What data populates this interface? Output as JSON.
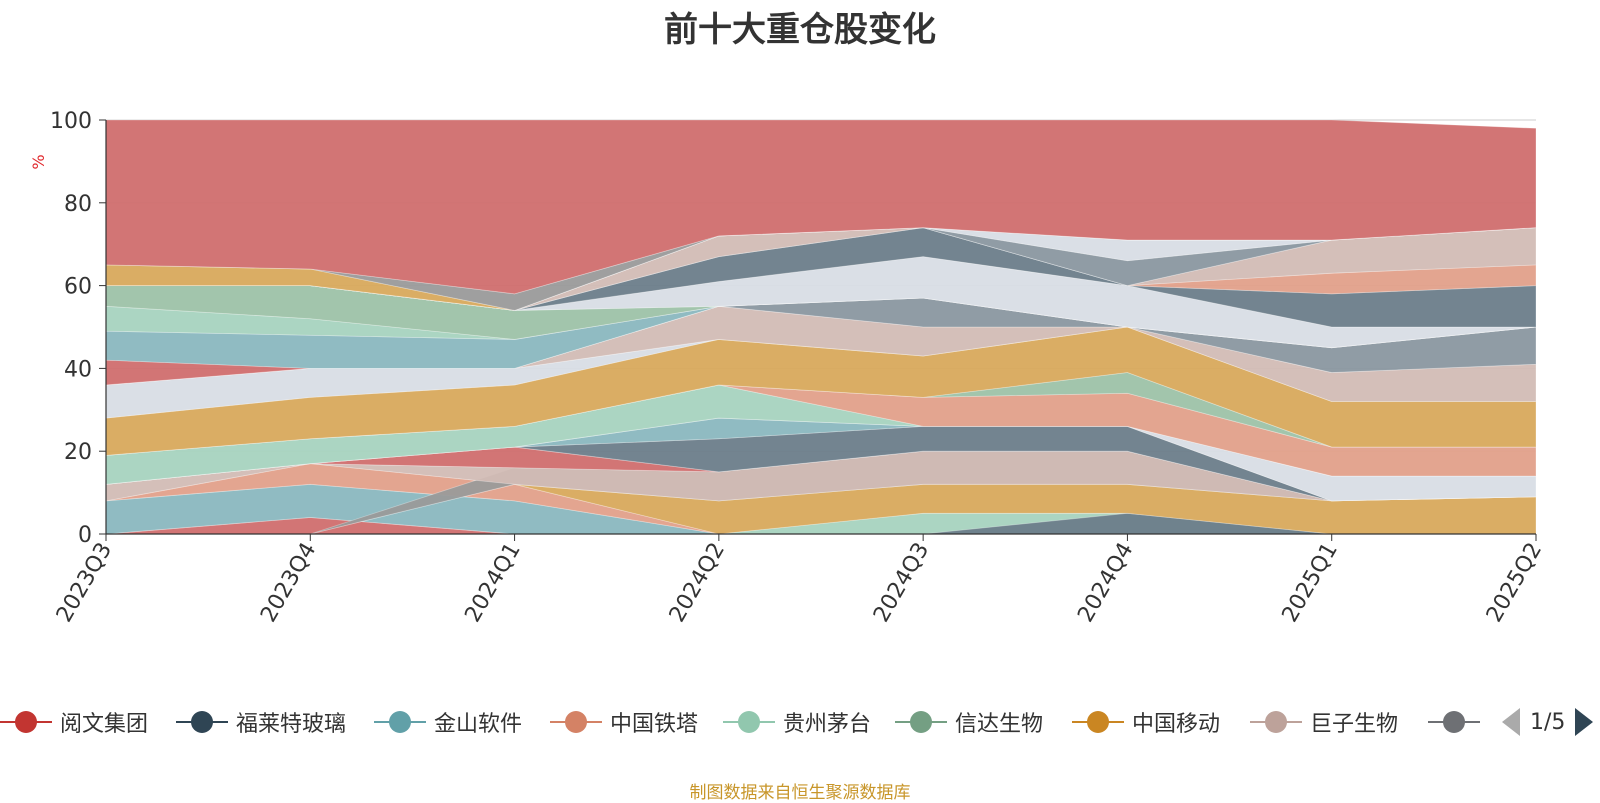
{
  "title": "前十大重仓股变化",
  "source_note": "制图数据来自恒生聚源数据库",
  "legend_page": "1/5",
  "chart_data": {
    "type": "area",
    "title": "前十大重仓股变化",
    "ylabel": "%",
    "ylim": [
      0,
      100
    ],
    "yticks": [
      0,
      20,
      40,
      60,
      80,
      100
    ],
    "categories": [
      "2023Q3",
      "2023Q4",
      "2024Q1",
      "2024Q2",
      "2024Q3",
      "2024Q4",
      "2025Q1",
      "2025Q2"
    ],
    "grid": true,
    "legend_position": "bottom",
    "layers": [
      {
        "color": "#d06e6e",
        "lower": [
          0,
          0,
          0,
          0,
          0,
          0,
          0,
          0
        ],
        "upper": [
          0,
          4,
          0,
          0,
          0,
          0,
          0,
          0
        ]
      },
      {
        "color": "#8ab7bf",
        "lower": [
          0,
          4,
          0,
          0,
          0,
          0,
          0,
          0
        ],
        "upper": [
          8,
          12,
          8,
          0,
          0,
          0,
          0,
          0
        ]
      },
      {
        "color": "#e2a08a",
        "lower": [
          8,
          12,
          8,
          0,
          0,
          0,
          0,
          0
        ],
        "upper": [
          8,
          17,
          12,
          0,
          0,
          0,
          0,
          0
        ]
      },
      {
        "color": "#a7d3bf",
        "lower": [
          0,
          0,
          0,
          0,
          0,
          0,
          0,
          0
        ],
        "upper": [
          0,
          0,
          0,
          0,
          5,
          5,
          0,
          0
        ]
      },
      {
        "color": "#6b7d8a",
        "lower": [
          0,
          0,
          0,
          0,
          0,
          0,
          0,
          0
        ],
        "upper": [
          0,
          0,
          0,
          0,
          0,
          5,
          0,
          0
        ]
      },
      {
        "color": "#d8a95c",
        "lower": [
          0,
          0,
          12,
          0,
          5,
          5,
          0,
          0
        ],
        "upper": [
          0,
          0,
          12,
          8,
          12,
          12,
          8,
          9
        ]
      },
      {
        "color": "#9a9a9a",
        "lower": [
          0,
          0,
          12,
          8,
          12,
          12,
          8,
          9
        ],
        "upper": [
          0,
          0,
          16,
          15,
          20,
          20,
          8,
          9
        ]
      },
      {
        "color": "#d2bcb5",
        "lower": [
          8,
          17,
          12,
          8,
          12,
          12,
          8,
          9
        ],
        "upper": [
          12,
          17,
          16,
          15,
          20,
          20,
          8,
          9
        ]
      },
      {
        "color": "#d06e6e",
        "lower": [
          12,
          17,
          16,
          15,
          20,
          20,
          8,
          9
        ],
        "upper": [
          12,
          17,
          21,
          15,
          20,
          20,
          8,
          9
        ]
      },
      {
        "color": "#6b7d8a",
        "lower": [
          12,
          17,
          21,
          15,
          20,
          20,
          8,
          9
        ],
        "upper": [
          12,
          17,
          21,
          23,
          26,
          26,
          8,
          9
        ]
      },
      {
        "color": "#8ab7bf",
        "lower": [
          12,
          17,
          21,
          23,
          26,
          26,
          8,
          9
        ],
        "upper": [
          12,
          17,
          21,
          28,
          26,
          26,
          8,
          9
        ]
      },
      {
        "color": "#d8dde5",
        "lower": [
          12,
          17,
          21,
          28,
          26,
          26,
          8,
          9
        ],
        "upper": [
          12,
          17,
          21,
          28,
          26,
          26,
          14,
          14
        ]
      },
      {
        "color": "#a7d3bf",
        "lower": [
          12,
          17,
          21,
          28,
          26,
          26,
          14,
          14
        ],
        "upper": [
          19,
          23,
          26,
          36,
          26,
          26,
          14,
          14
        ]
      },
      {
        "color": "#e2a08a",
        "lower": [
          19,
          23,
          26,
          36,
          26,
          26,
          14,
          14
        ],
        "upper": [
          19,
          23,
          26,
          36,
          33,
          34,
          21,
          21
        ]
      },
      {
        "color": "#9dc2a8",
        "lower": [
          19,
          23,
          26,
          36,
          33,
          34,
          21,
          21
        ],
        "upper": [
          19,
          23,
          26,
          36,
          33,
          39,
          21,
          21
        ]
      },
      {
        "color": "#d8a95c",
        "lower": [
          19,
          23,
          26,
          36,
          33,
          39,
          21,
          21
        ],
        "upper": [
          28,
          33,
          36,
          47,
          43,
          50,
          32,
          32
        ]
      },
      {
        "color": "#d8dde5",
        "lower": [
          28,
          33,
          36,
          47,
          43,
          50,
          32,
          32
        ],
        "upper": [
          36,
          40,
          40,
          47,
          43,
          50,
          32,
          32
        ]
      },
      {
        "color": "#d2bcb5",
        "lower": [
          36,
          40,
          40,
          47,
          43,
          50,
          32,
          32
        ],
        "upper": [
          36,
          40,
          40,
          55,
          50,
          50,
          39,
          41
        ]
      },
      {
        "color": "#8a97a0",
        "lower": [
          36,
          40,
          40,
          55,
          50,
          50,
          39,
          41
        ],
        "upper": [
          36,
          40,
          40,
          55,
          57,
          50,
          45,
          50
        ]
      },
      {
        "color": "#d06e6e",
        "lower": [
          36,
          40,
          40,
          55,
          57,
          50,
          45,
          50
        ],
        "upper": [
          42,
          40,
          40,
          55,
          57,
          50,
          45,
          50
        ]
      },
      {
        "color": "#8ab7bf",
        "lower": [
          42,
          40,
          40,
          55,
          57,
          50,
          45,
          50
        ],
        "upper": [
          49,
          48,
          47,
          55,
          57,
          50,
          45,
          50
        ]
      },
      {
        "color": "#a7d3bf",
        "lower": [
          49,
          48,
          47,
          55,
          57,
          50,
          45,
          50
        ],
        "upper": [
          55,
          52,
          47,
          55,
          57,
          50,
          45,
          50
        ]
      },
      {
        "color": "#9dc2a8",
        "lower": [
          55,
          52,
          47,
          55,
          57,
          50,
          45,
          50
        ],
        "upper": [
          60,
          60,
          54,
          55,
          57,
          50,
          45,
          50
        ]
      },
      {
        "color": "#d8dde5",
        "lower": [
          60,
          60,
          54,
          55,
          57,
          50,
          45,
          50
        ],
        "upper": [
          60,
          60,
          54,
          61,
          67,
          60,
          50,
          50
        ]
      },
      {
        "color": "#6b7d8a",
        "lower": [
          60,
          60,
          54,
          61,
          67,
          60,
          50,
          50
        ],
        "upper": [
          60,
          60,
          54,
          67,
          74,
          60,
          58,
          60
        ]
      },
      {
        "color": "#e2a08a",
        "lower": [
          60,
          60,
          54,
          67,
          74,
          60,
          58,
          60
        ],
        "upper": [
          60,
          60,
          54,
          67,
          74,
          60,
          63,
          65
        ]
      },
      {
        "color": "#d2bcb5",
        "lower": [
          60,
          60,
          54,
          67,
          74,
          60,
          63,
          65
        ],
        "upper": [
          60,
          60,
          54,
          72,
          74,
          60,
          71,
          74
        ]
      },
      {
        "color": "#8a97a0",
        "lower": [
          60,
          60,
          54,
          72,
          74,
          60,
          71,
          74
        ],
        "upper": [
          60,
          60,
          54,
          72,
          74,
          66,
          71,
          74
        ]
      },
      {
        "color": "#d8dde5",
        "lower": [
          60,
          60,
          54,
          72,
          74,
          66,
          71,
          74
        ],
        "upper": [
          60,
          60,
          54,
          72,
          74,
          71,
          71,
          74
        ]
      },
      {
        "color": "#d8a95c",
        "lower": [
          60,
          60,
          54,
          72,
          74,
          71,
          71,
          74
        ],
        "upper": [
          65,
          64,
          54,
          72,
          74,
          71,
          71,
          74
        ]
      },
      {
        "color": "#9a9a9a",
        "lower": [
          65,
          64,
          54,
          72,
          74,
          71,
          71,
          74
        ],
        "upper": [
          65,
          64,
          58,
          72,
          74,
          71,
          71,
          74
        ]
      },
      {
        "color": "#d06e6e",
        "lower": [
          65,
          64,
          58,
          72,
          74,
          71,
          71,
          74
        ],
        "upper": [
          100,
          100,
          100,
          100,
          100,
          100,
          100,
          98
        ]
      }
    ],
    "legend": [
      {
        "name": "阅文集团",
        "color": "#c23531"
      },
      {
        "name": "福莱特玻璃",
        "color": "#2f4554"
      },
      {
        "name": "金山软件",
        "color": "#61a0a8"
      },
      {
        "name": "中国铁塔",
        "color": "#d48265"
      },
      {
        "name": "贵州茅台",
        "color": "#91c7ae"
      },
      {
        "name": "信达生物",
        "color": "#749f83"
      },
      {
        "name": "中国移动",
        "color": "#ca8622"
      },
      {
        "name": "巨子生物",
        "color": "#bda29a"
      },
      {
        "name": "",
        "color": "#6e7074"
      }
    ]
  }
}
